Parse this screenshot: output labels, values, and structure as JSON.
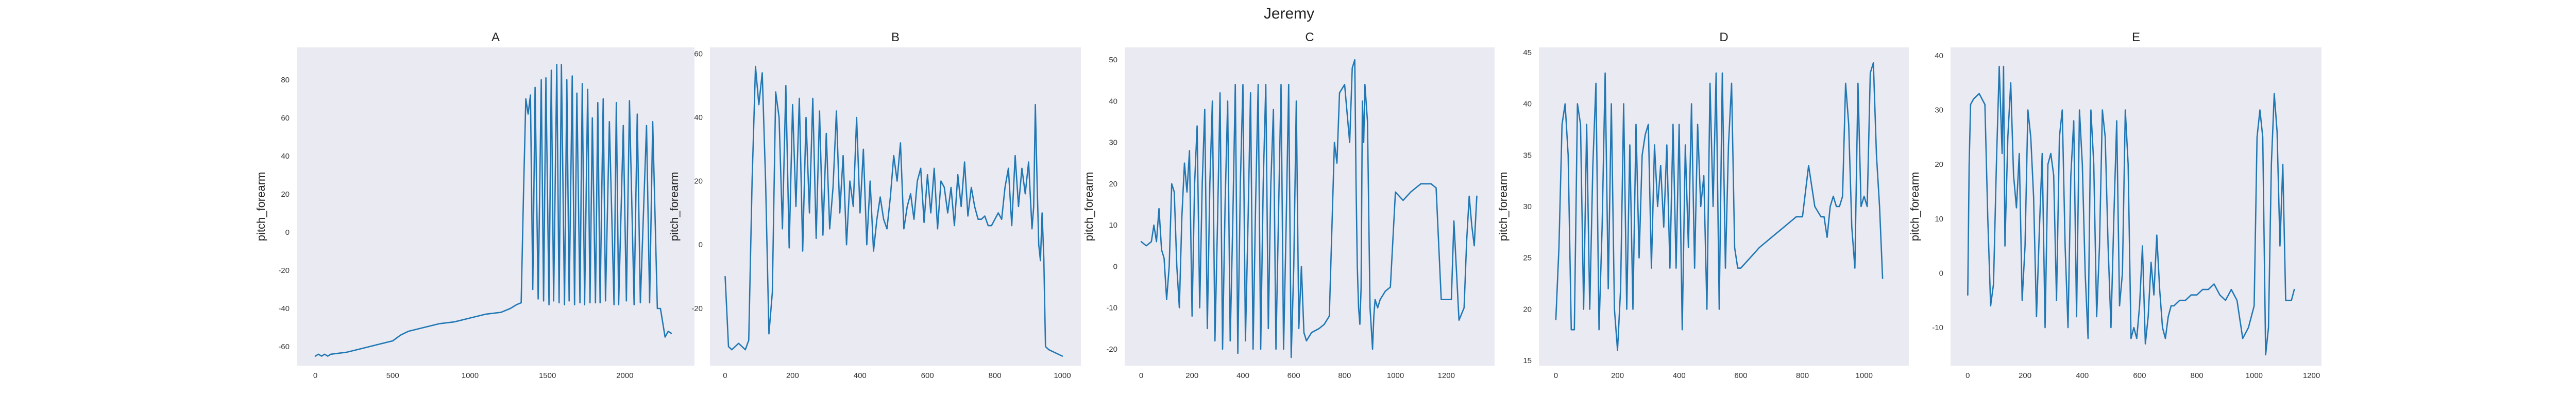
{
  "figure": {
    "suptitle": "Jeremy"
  },
  "chart_data": [
    {
      "type": "line",
      "title": "A",
      "xlabel": "",
      "ylabel": "pitch_forearm",
      "grid": false,
      "xlim": [
        -120,
        2450
      ],
      "ylim": [
        -70,
        97
      ],
      "xticks": [
        0,
        500,
        1000,
        1500,
        2000
      ],
      "yticks": [
        -60,
        -40,
        -20,
        0,
        20,
        40,
        60,
        80
      ],
      "series": [
        {
          "x": [
            0,
            20,
            40,
            60,
            80,
            100,
            200,
            300,
            400,
            500,
            550,
            600,
            700,
            800,
            900,
            1000,
            1100,
            1200,
            1260,
            1300,
            1330,
            1345,
            1360,
            1375,
            1390,
            1405,
            1420,
            1440,
            1460,
            1475,
            1490,
            1510,
            1525,
            1540,
            1560,
            1575,
            1590,
            1610,
            1625,
            1640,
            1660,
            1675,
            1690,
            1710,
            1725,
            1740,
            1760,
            1775,
            1790,
            1810,
            1825,
            1840,
            1860,
            1875,
            1900,
            1930,
            1945,
            1960,
            1990,
            2010,
            2030,
            2060,
            2080,
            2100,
            2140,
            2160,
            2180,
            2210,
            2230,
            2260,
            2280,
            2300
          ],
          "y": [
            -65,
            -64,
            -65,
            -64,
            -65,
            -64,
            -63,
            -61,
            -59,
            -57,
            -54,
            -52,
            -50,
            -48,
            -47,
            -45,
            -43,
            -42,
            -40,
            -38,
            -37,
            20,
            70,
            62,
            72,
            -30,
            76,
            -35,
            80,
            -36,
            81,
            -38,
            85,
            -36,
            88,
            -37,
            88,
            -38,
            80,
            -36,
            82,
            -38,
            73,
            -37,
            78,
            -38,
            75,
            -37,
            60,
            -37,
            68,
            -37,
            70,
            -36,
            58,
            -38,
            68,
            -38,
            56,
            -36,
            69,
            -38,
            62,
            -37,
            56,
            -37,
            58,
            -40,
            -40,
            -55,
            -52,
            -53
          ]
        }
      ]
    },
    {
      "type": "line",
      "title": "B",
      "xlabel": "",
      "ylabel": "pitch_forearm",
      "grid": false,
      "xlim": [
        -45,
        1055
      ],
      "ylim": [
        -38,
        62
      ],
      "xticks": [
        0,
        200,
        400,
        600,
        800,
        1000
      ],
      "yticks": [
        -20,
        0,
        20,
        40,
        60
      ],
      "series": [
        {
          "x": [
            0,
            10,
            20,
            40,
            60,
            70,
            80,
            90,
            100,
            110,
            120,
            130,
            140,
            150,
            160,
            170,
            180,
            190,
            200,
            210,
            220,
            230,
            240,
            250,
            260,
            270,
            280,
            290,
            300,
            310,
            320,
            330,
            340,
            350,
            360,
            370,
            380,
            390,
            400,
            410,
            420,
            430,
            440,
            450,
            460,
            470,
            480,
            490,
            500,
            510,
            520,
            530,
            540,
            550,
            560,
            570,
            580,
            590,
            600,
            610,
            620,
            630,
            640,
            650,
            660,
            670,
            680,
            690,
            700,
            710,
            720,
            730,
            740,
            750,
            760,
            770,
            780,
            790,
            800,
            810,
            820,
            830,
            840,
            850,
            860,
            870,
            880,
            890,
            900,
            910,
            915,
            920,
            925,
            930,
            935,
            940,
            945,
            950,
            960,
            980,
            1000
          ],
          "y": [
            -10,
            -32,
            -33,
            -31,
            -33,
            -30,
            20,
            56,
            44,
            54,
            20,
            -28,
            -15,
            48,
            40,
            5,
            50,
            -1,
            44,
            12,
            46,
            -2,
            40,
            10,
            46,
            2,
            42,
            3,
            35,
            5,
            18,
            42,
            10,
            28,
            0,
            20,
            12,
            40,
            10,
            30,
            0,
            20,
            -2,
            8,
            15,
            8,
            5,
            15,
            28,
            20,
            32,
            5,
            12,
            16,
            8,
            20,
            24,
            7,
            22,
            10,
            24,
            5,
            20,
            18,
            10,
            18,
            6,
            22,
            12,
            26,
            9,
            18,
            12,
            8,
            8,
            9,
            6,
            6,
            8,
            10,
            8,
            18,
            24,
            6,
            28,
            12,
            24,
            16,
            26,
            5,
            12,
            44,
            20,
            0,
            -5,
            10,
            -4,
            -32,
            -33,
            -34,
            -35
          ]
        }
      ]
    },
    {
      "type": "line",
      "title": "C",
      "xlabel": "",
      "ylabel": "pitch_forearm",
      "grid": false,
      "xlim": [
        -65,
        1390
      ],
      "ylim": [
        -24,
        53
      ],
      "xticks": [
        0,
        200,
        400,
        600,
        800,
        1000,
        1200
      ],
      "yticks": [
        -20,
        -10,
        0,
        10,
        20,
        30,
        40,
        50
      ],
      "series": [
        {
          "x": [
            0,
            20,
            40,
            50,
            60,
            70,
            80,
            90,
            100,
            110,
            120,
            130,
            140,
            150,
            160,
            170,
            180,
            190,
            200,
            210,
            220,
            230,
            240,
            250,
            260,
            270,
            280,
            290,
            300,
            310,
            320,
            330,
            340,
            350,
            360,
            370,
            380,
            390,
            400,
            410,
            420,
            430,
            440,
            450,
            460,
            470,
            480,
            490,
            500,
            510,
            520,
            530,
            540,
            550,
            560,
            570,
            580,
            590,
            600,
            610,
            620,
            630,
            640,
            650,
            670,
            700,
            720,
            740,
            760,
            770,
            780,
            800,
            820,
            830,
            840,
            845,
            850,
            855,
            860,
            865,
            870,
            875,
            880,
            890,
            900,
            905,
            910,
            915,
            920,
            930,
            940,
            950,
            960,
            980,
            1000,
            1030,
            1060,
            1080,
            1100,
            1110,
            1120,
            1140,
            1160,
            1180,
            1200,
            1220,
            1230,
            1250,
            1270,
            1280,
            1290,
            1300,
            1310,
            1320
          ],
          "y": [
            6,
            5,
            6,
            10,
            6,
            14,
            4,
            2,
            -8,
            0,
            20,
            18,
            0,
            -10,
            12,
            25,
            18,
            28,
            -12,
            20,
            34,
            -10,
            20,
            38,
            -15,
            20,
            40,
            -18,
            10,
            42,
            -20,
            15,
            40,
            -18,
            10,
            44,
            -21,
            20,
            44,
            -18,
            10,
            42,
            -20,
            15,
            44,
            -20,
            20,
            44,
            -15,
            20,
            38,
            -20,
            12,
            44,
            -20,
            10,
            44,
            -22,
            0,
            40,
            -15,
            0,
            -16,
            -18,
            -16,
            -15,
            -14,
            -12,
            30,
            25,
            42,
            44,
            30,
            48,
            50,
            20,
            0,
            -10,
            -14,
            -5,
            40,
            30,
            44,
            35,
            -10,
            -15,
            -20,
            -12,
            -8,
            -10,
            -8,
            -7,
            -6,
            -5,
            18,
            16,
            18,
            19,
            20,
            20,
            20,
            20,
            19,
            -8,
            -8,
            -8,
            11,
            -13,
            -10,
            6,
            17,
            10,
            5,
            17
          ]
        }
      ]
    },
    {
      "type": "line",
      "title": "D",
      "xlabel": "",
      "ylabel": "pitch_forearm",
      "grid": false,
      "xlim": [
        -55,
        1145
      ],
      "ylim": [
        14.5,
        45.5
      ],
      "xticks": [
        0,
        200,
        400,
        600,
        800,
        1000
      ],
      "yticks": [
        15,
        20,
        25,
        30,
        35,
        40,
        45
      ],
      "series": [
        {
          "x": [
            0,
            10,
            20,
            30,
            40,
            50,
            60,
            70,
            80,
            90,
            100,
            110,
            120,
            130,
            140,
            150,
            160,
            170,
            180,
            190,
            200,
            210,
            220,
            230,
            240,
            250,
            260,
            270,
            280,
            290,
            300,
            310,
            320,
            330,
            340,
            350,
            360,
            370,
            380,
            390,
            400,
            410,
            420,
            430,
            440,
            450,
            460,
            470,
            480,
            490,
            500,
            510,
            520,
            530,
            540,
            550,
            560,
            570,
            580,
            590,
            600,
            630,
            660,
            700,
            740,
            780,
            800,
            820,
            840,
            860,
            870,
            880,
            890,
            900,
            910,
            920,
            930,
            940,
            950,
            960,
            970,
            980,
            990,
            1000,
            1010,
            1020,
            1030,
            1040,
            1050,
            1060
          ],
          "y": [
            19,
            26,
            38,
            40,
            35,
            18,
            18,
            40,
            38,
            20,
            38,
            20,
            34,
            42,
            18,
            28,
            43,
            22,
            40,
            20,
            16,
            22,
            40,
            20,
            36,
            20,
            38,
            25,
            35,
            37,
            38,
            24,
            36,
            30,
            34,
            28,
            36,
            24,
            38,
            24,
            38,
            18,
            36,
            26,
            40,
            24,
            38,
            30,
            33,
            20,
            42,
            30,
            43,
            20,
            43,
            24,
            36,
            42,
            26,
            24,
            24,
            25,
            26,
            27,
            28,
            29,
            29,
            34,
            30,
            29,
            29,
            27,
            30,
            31,
            30,
            30,
            31,
            42,
            38,
            28,
            24,
            42,
            30,
            31,
            30,
            43,
            44,
            35,
            30,
            23
          ]
        }
      ]
    },
    {
      "type": "line",
      "title": "E",
      "xlabel": "",
      "ylabel": "pitch_forearm",
      "grid": false,
      "xlim": [
        -60,
        1235
      ],
      "ylim": [
        -17,
        41.5
      ],
      "xticks": [
        0,
        200,
        400,
        600,
        800,
        1000,
        1200
      ],
      "yticks": [
        -10,
        0,
        10,
        20,
        30,
        40
      ],
      "series": [
        {
          "x": [
            0,
            5,
            10,
            20,
            40,
            60,
            70,
            80,
            90,
            100,
            110,
            120,
            125,
            130,
            140,
            150,
            160,
            170,
            180,
            190,
            200,
            210,
            220,
            230,
            240,
            250,
            260,
            270,
            280,
            290,
            300,
            310,
            320,
            330,
            340,
            350,
            360,
            370,
            380,
            390,
            400,
            410,
            420,
            430,
            440,
            450,
            460,
            470,
            480,
            490,
            500,
            510,
            520,
            530,
            540,
            550,
            560,
            570,
            580,
            590,
            600,
            610,
            620,
            630,
            640,
            650,
            660,
            670,
            680,
            690,
            700,
            710,
            720,
            740,
            760,
            780,
            800,
            820,
            840,
            860,
            880,
            900,
            920,
            940,
            960,
            980,
            1000,
            1010,
            1020,
            1030,
            1040,
            1050,
            1060,
            1070,
            1080,
            1090,
            1100,
            1110,
            1120,
            1130,
            1140
          ],
          "y": [
            -4,
            20,
            31,
            32,
            33,
            31,
            10,
            -6,
            -2,
            20,
            38,
            22,
            38,
            5,
            25,
            35,
            18,
            12,
            22,
            -5,
            5,
            30,
            25,
            14,
            -8,
            8,
            22,
            -10,
            20,
            22,
            18,
            -5,
            25,
            30,
            5,
            -10,
            18,
            28,
            -8,
            30,
            20,
            0,
            -12,
            30,
            20,
            -8,
            5,
            30,
            25,
            5,
            -10,
            10,
            28,
            -6,
            0,
            30,
            20,
            -12,
            -10,
            -12,
            -6,
            5,
            -13,
            -8,
            2,
            -4,
            7,
            -3,
            -10,
            -12,
            -8,
            -6,
            -6,
            -5,
            -5,
            -4,
            -4,
            -3,
            -3,
            -2,
            -4,
            -5,
            -3,
            -5,
            -12,
            -10,
            -6,
            25,
            30,
            25,
            -15,
            -10,
            20,
            33,
            26,
            5,
            20,
            -5,
            -5,
            -5,
            -3
          ]
        }
      ]
    }
  ]
}
